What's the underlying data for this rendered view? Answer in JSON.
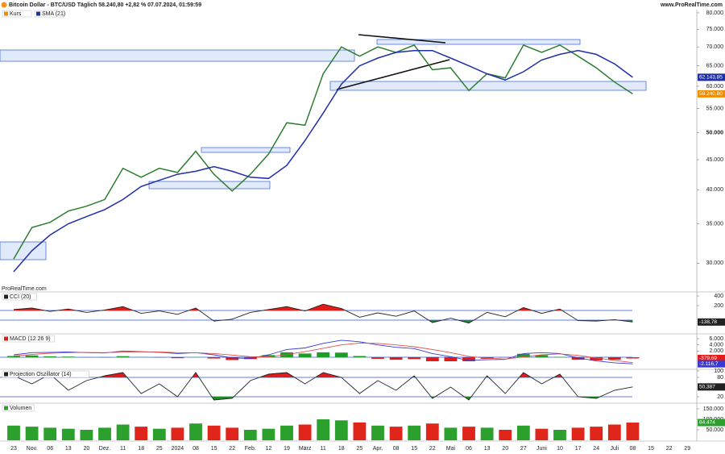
{
  "header": {
    "title": "Bitcoin Dollar - BTC/USD Täglich 58.240,80 +2,82 % 07.07.2024, 01:59:59",
    "site": "www.ProRealTime.com",
    "watermark": "ProRealTime.com"
  },
  "chart_data": [
    {
      "type": "line",
      "log_scale": true,
      "categories": [
        "23",
        "Nov.",
        "06",
        "13",
        "20",
        "Dez.",
        "11",
        "18",
        "25",
        "2024",
        "08",
        "15",
        "22",
        "Feb.",
        "12",
        "19",
        "März",
        "11",
        "18",
        "25",
        "Apr.",
        "08",
        "15",
        "22",
        "Mai",
        "06",
        "13",
        "20",
        "27",
        "Juni",
        "10",
        "17",
        "24",
        "Juli",
        "08",
        "15",
        "22",
        "29"
      ],
      "ylim": [
        26800,
        81000
      ],
      "yticks": [
        {
          "value": 30000,
          "label": "30.000"
        },
        {
          "value": 35000,
          "label": "35.000"
        },
        {
          "value": 40000,
          "label": "40.000"
        },
        {
          "value": 45000,
          "label": "45.000"
        },
        {
          "value": 50000,
          "label": "50.000"
        },
        {
          "value": 55000,
          "label": "55.000"
        },
        {
          "value": 60000,
          "label": "60.000"
        },
        {
          "value": 65000,
          "label": "65.000"
        },
        {
          "value": 70000,
          "label": "70.000"
        },
        {
          "value": 75000,
          "label": "75.000"
        },
        {
          "value": 80000,
          "label": "80.000"
        }
      ],
      "series": [
        {
          "name": "Kurs",
          "color": "#2e7d32",
          "tag": "58.240,80",
          "tag_color": "#f08c00",
          "values": [
            30500,
            34500,
            35200,
            36800,
            37500,
            38500,
            43500,
            42000,
            43500,
            42800,
            46500,
            42500,
            39800,
            42500,
            46000,
            52000,
            51500,
            63000,
            70000,
            67500,
            70000,
            68500,
            70500,
            64000,
            64500,
            59000,
            63000,
            62000,
            70500,
            68500,
            70500,
            67500,
            64500,
            61000,
            58240.8,
            null,
            null,
            null
          ]
        },
        {
          "name": "SMA (21)",
          "color": "#1f2fa8",
          "tag": "62.143,85",
          "values": [
            29000,
            31500,
            33500,
            35000,
            36000,
            37000,
            38500,
            40500,
            41500,
            42500,
            43000,
            43800,
            43000,
            42000,
            41800,
            44000,
            48500,
            54000,
            60500,
            65000,
            67000,
            68500,
            69000,
            69000,
            67000,
            65000,
            63000,
            61500,
            63500,
            66500,
            68000,
            69000,
            68000,
            65500,
            62143.85,
            null,
            null,
            null
          ]
        }
      ]
    },
    {
      "type": "oscillator",
      "title": "CCI (20)",
      "ylim": [
        -350,
        467
      ],
      "yticks": [
        200,
        400
      ],
      "levels": [
        100,
        -100
      ],
      "fill_above_color": "#e31a1a",
      "fill_below_color": "#1e8c2a",
      "series": [
        {
          "color": "#222222",
          "tag": "-138,78",
          "values": [
            120,
            150,
            80,
            130,
            60,
            110,
            180,
            40,
            90,
            20,
            150,
            -120,
            -80,
            60,
            120,
            180,
            90,
            230,
            140,
            -40,
            50,
            -20,
            90,
            -150,
            -60,
            -160,
            60,
            -30,
            160,
            40,
            130,
            -110,
            -120,
            -90,
            -138.78,
            null,
            null,
            null
          ]
        }
      ]
    },
    {
      "type": "macd",
      "title": "MACD (12 26 9)",
      "ylim": [
        -3900,
        7300
      ],
      "yticks": [
        {
          "value": 2000,
          "label": "2.000"
        },
        {
          "value": 4000,
          "label": "4.000"
        },
        {
          "value": 6000,
          "label": "6.000"
        }
      ],
      "levels": [
        0
      ],
      "up_color": "#1e9c2a",
      "down_color": "#e31a1a",
      "series": [
        {
          "type": "bar",
          "tag": "-379,69",
          "color": "#e31a1a",
          "values": [
            400,
            600,
            300,
            200,
            -50,
            -100,
            350,
            50,
            -100,
            -300,
            50,
            -400,
            -900,
            -600,
            700,
            1600,
            1200,
            1600,
            1500,
            400,
            -500,
            -800,
            -600,
            -1300,
            -1300,
            -1300,
            -500,
            -100,
            1100,
            700,
            100,
            -800,
            -1000,
            -800,
            -379.69,
            null,
            null,
            null
          ]
        },
        {
          "type": "line",
          "color": "#3a3ad0",
          "tag": "-2.116,7",
          "values": [
            800,
            1500,
            1600,
            1700,
            1500,
            1400,
            2000,
            1800,
            1600,
            1200,
            1500,
            800,
            -200,
            -400,
            800,
            2500,
            3000,
            4500,
            5500,
            5000,
            4000,
            3200,
            2800,
            1200,
            200,
            -1000,
            -800,
            -700,
            1200,
            1500,
            1200,
            -200,
            -1200,
            -1800,
            -2116.7,
            null,
            null,
            null
          ]
        },
        {
          "type": "line",
          "color": "#e0504a",
          "values": [
            400,
            900,
            1300,
            1500,
            1550,
            1500,
            1650,
            1750,
            1700,
            1500,
            1450,
            1200,
            700,
            200,
            100,
            900,
            1800,
            2900,
            4000,
            4600,
            4500,
            4000,
            3400,
            2500,
            1500,
            300,
            -300,
            -600,
            100,
            800,
            1100,
            600,
            -200,
            -1000,
            -1737,
            null,
            null,
            null
          ]
        }
      ]
    },
    {
      "type": "oscillator",
      "title": "Projection Oszillator (14)",
      "ylim": [
        0,
        102.5
      ],
      "yticks": [
        20,
        80,
        100
      ],
      "levels": [
        80,
        20
      ],
      "fill_above_color": "#e31a1a",
      "fill_below_color": "#1e8c2a",
      "series": [
        {
          "color": "#222222",
          "tag": "50,387",
          "values": [
            85,
            60,
            90,
            40,
            70,
            85,
            95,
            30,
            60,
            20,
            95,
            10,
            15,
            70,
            90,
            95,
            60,
            95,
            80,
            30,
            70,
            40,
            85,
            15,
            50,
            10,
            85,
            30,
            95,
            60,
            90,
            20,
            15,
            40,
            50.387,
            null,
            null,
            null
          ]
        }
      ]
    },
    {
      "type": "bar",
      "title": "Volumen",
      "ylim": [
        0,
        173000
      ],
      "yticks": [
        {
          "value": 50000,
          "label": "50.000"
        },
        {
          "value": 100000,
          "label": "100.000"
        },
        {
          "value": 150000,
          "label": "150.000"
        }
      ],
      "up_color": "#2ca02c",
      "down_color": "#e0261b",
      "series": [
        {
          "color": "#2ca02c",
          "tag": "84.474",
          "values": [
            70000,
            65000,
            60000,
            55000,
            50000,
            60000,
            75000,
            65000,
            55000,
            60000,
            80000,
            70000,
            60000,
            50000,
            55000,
            70000,
            75000,
            100000,
            95000,
            85000,
            70000,
            65000,
            70000,
            80000,
            60000,
            65000,
            60000,
            50000,
            70000,
            55000,
            50000,
            60000,
            65000,
            75000,
            84474,
            null,
            null,
            null
          ]
        }
      ]
    }
  ]
}
